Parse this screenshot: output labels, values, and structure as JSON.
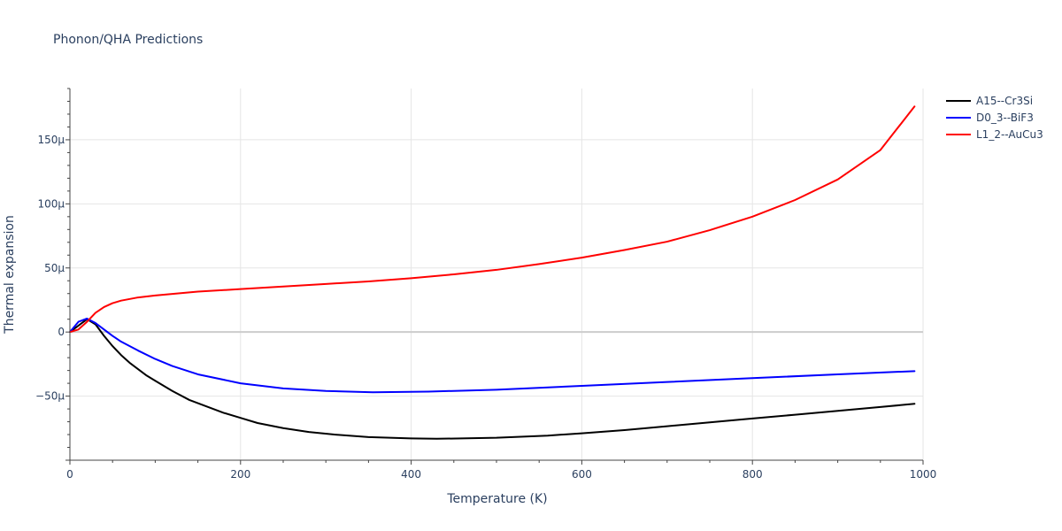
{
  "chart_data": {
    "type": "line",
    "title": "Phonon/QHA Predictions",
    "xlabel": "Temperature (K)",
    "ylabel": "Thermal expansion",
    "xlim": [
      0,
      1000
    ],
    "ylim": [
      -100,
      190
    ],
    "grid": true,
    "legend": "top-right",
    "x_ticks": [
      {
        "value": 0,
        "label": "0"
      },
      {
        "value": 200,
        "label": "200"
      },
      {
        "value": 400,
        "label": "400"
      },
      {
        "value": 600,
        "label": "600"
      },
      {
        "value": 800,
        "label": "800"
      },
      {
        "value": 1000,
        "label": "1000"
      }
    ],
    "y_ticks": [
      {
        "value": -50,
        "label": "−50μ"
      },
      {
        "value": 0,
        "label": "0"
      },
      {
        "value": 50,
        "label": "50μ"
      },
      {
        "value": 100,
        "label": "100μ"
      },
      {
        "value": 150,
        "label": "150μ"
      }
    ],
    "series": [
      {
        "name": "A15--Cr3Si",
        "color": "#000000",
        "x": [
          0,
          10,
          20,
          30,
          40,
          50,
          60,
          70,
          80,
          90,
          100,
          120,
          140,
          160,
          180,
          200,
          220,
          250,
          280,
          310,
          350,
          400,
          430,
          500,
          560,
          600,
          650,
          700,
          750,
          800,
          850,
          900,
          950,
          990
        ],
        "y": [
          0,
          5,
          10,
          6,
          -3,
          -11,
          -18,
          -24,
          -29,
          -34,
          -38,
          -46,
          -53,
          -58,
          -63,
          -67,
          -71,
          -75,
          -78,
          -80,
          -82,
          -83,
          -83.3,
          -82.5,
          -80.8,
          -79,
          -76.5,
          -73.5,
          -70.5,
          -67.5,
          -64.5,
          -61.5,
          -58.5,
          -56
        ]
      },
      {
        "name": "D0_3--BiF3",
        "color": "#0000ff",
        "x": [
          0,
          10,
          20,
          30,
          40,
          50,
          60,
          80,
          100,
          120,
          150,
          200,
          250,
          300,
          355,
          420,
          500,
          600,
          700,
          800,
          900,
          990
        ],
        "y": [
          0,
          8,
          10.5,
          7,
          2,
          -3,
          -7.5,
          -14.5,
          -21,
          -26.5,
          -33,
          -40,
          -44,
          -46,
          -47,
          -46.5,
          -45,
          -42,
          -39,
          -36,
          -33,
          -30.5
        ]
      },
      {
        "name": "L1_2--AuCu3",
        "color": "#ff0000",
        "x": [
          0,
          10,
          20,
          30,
          40,
          50,
          60,
          80,
          100,
          150,
          200,
          250,
          300,
          350,
          400,
          450,
          500,
          550,
          600,
          650,
          700,
          750,
          800,
          850,
          900,
          950,
          990
        ],
        "y": [
          0,
          2,
          8,
          15,
          19.5,
          22.5,
          24.5,
          27,
          28.5,
          31.5,
          33.5,
          35.5,
          37.5,
          39.5,
          42,
          45,
          48.5,
          53,
          58,
          64,
          70.5,
          79.5,
          90,
          103,
          119,
          142,
          176
        ]
      }
    ]
  }
}
